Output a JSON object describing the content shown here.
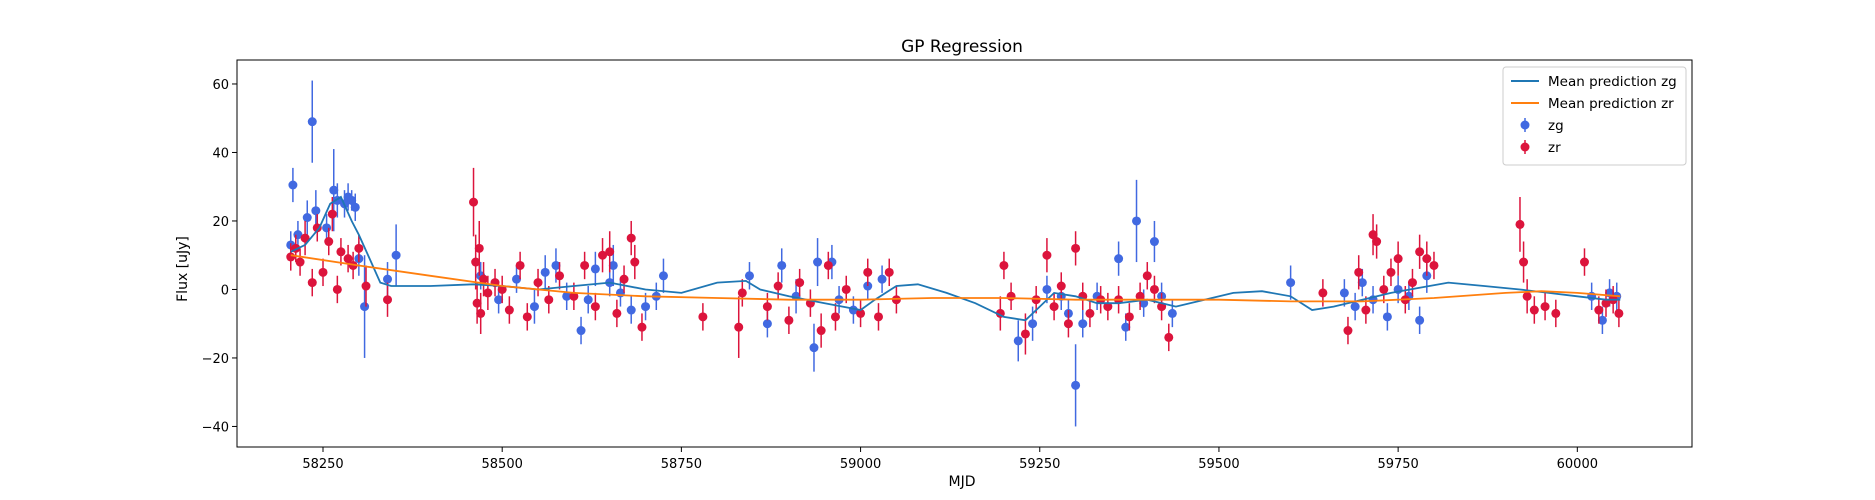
{
  "chart_data": {
    "type": "scatter",
    "title": "GP Regression",
    "xlabel": "MJD",
    "ylabel": "Flux [uJy]",
    "xlim": [
      58130,
      60160
    ],
    "ylim": [
      -46,
      67
    ],
    "x_ticks": [
      58250,
      58500,
      58750,
      59000,
      59250,
      59500,
      59750,
      60000
    ],
    "y_ticks": [
      -40,
      -20,
      0,
      20,
      40,
      60
    ],
    "grid": false,
    "legend_position": "top-right",
    "colors": {
      "zg_mean": "#1f77b4",
      "zr_mean": "#ff7f0e",
      "zg_points": "#4169e1",
      "zr_points": "#dc143c"
    },
    "series": [
      {
        "name": "Mean prediction zg",
        "kind": "line",
        "x": [
          58205,
          58225,
          58245,
          58260,
          58275,
          58290,
          58300,
          58315,
          58330,
          58345,
          58400,
          58460,
          58500,
          58550,
          58600,
          58650,
          58700,
          58750,
          58800,
          58840,
          58860,
          58900,
          58950,
          59000,
          59020,
          59050,
          59080,
          59120,
          59160,
          59200,
          59230,
          59250,
          59270,
          59300,
          59330,
          59360,
          59400,
          59440,
          59480,
          59520,
          59560,
          59600,
          59630,
          59660,
          59700,
          59740,
          59780,
          59820,
          59870,
          59920,
          59960,
          60000,
          60040,
          60060
        ],
        "y": [
          11,
          13,
          18,
          25,
          27,
          20,
          16,
          9,
          2,
          1,
          1,
          1.5,
          1,
          0,
          1,
          2,
          0,
          -1,
          2,
          2.5,
          0,
          -2,
          -4,
          -6,
          -3,
          1,
          1.5,
          -1,
          -4,
          -8,
          -9,
          -5,
          -1,
          -2,
          -4,
          -4,
          -3,
          -5,
          -3,
          -1,
          -0.5,
          -2,
          -6,
          -5,
          -3,
          -1,
          0.5,
          2,
          1,
          0,
          -1,
          -2,
          -3,
          -3
        ]
      },
      {
        "name": "Mean prediction zr",
        "kind": "line",
        "x": [
          58205,
          58300,
          58400,
          58500,
          58600,
          58700,
          58800,
          58900,
          59000,
          59100,
          59200,
          59300,
          59400,
          59500,
          59600,
          59700,
          59800,
          59900,
          59950,
          60000,
          60060
        ],
        "y": [
          10,
          7,
          4,
          1,
          -1,
          -2,
          -2.5,
          -3,
          -3,
          -2.5,
          -2.5,
          -3,
          -3,
          -3,
          -3.5,
          -3.5,
          -2.5,
          -1,
          -0.5,
          -1,
          -2
        ]
      },
      {
        "name": "zg",
        "kind": "errorbar",
        "points": [
          [
            58205,
            13,
            4
          ],
          [
            58208,
            30.5,
            5
          ],
          [
            58215,
            16,
            4
          ],
          [
            58228,
            21,
            5
          ],
          [
            58235,
            49,
            12
          ],
          [
            58240,
            23,
            6
          ],
          [
            58255,
            18,
            4
          ],
          [
            58265,
            29,
            12
          ],
          [
            58270,
            26,
            5
          ],
          [
            58280,
            25,
            4
          ],
          [
            58285,
            27,
            4
          ],
          [
            58290,
            26,
            3
          ],
          [
            58295,
            24,
            4
          ],
          [
            58300,
            9,
            5
          ],
          [
            58308,
            -5,
            15
          ],
          [
            58340,
            3,
            5
          ],
          [
            58352,
            10,
            9
          ],
          [
            58470,
            4,
            4
          ],
          [
            58495,
            -3,
            4
          ],
          [
            58520,
            3,
            4
          ],
          [
            58545,
            -5,
            5
          ],
          [
            58560,
            5,
            5
          ],
          [
            58575,
            7,
            5
          ],
          [
            58590,
            -2,
            4
          ],
          [
            58610,
            -12,
            4
          ],
          [
            58620,
            -3,
            4
          ],
          [
            58630,
            6,
            5
          ],
          [
            58650,
            2,
            4
          ],
          [
            58655,
            7,
            6
          ],
          [
            58665,
            -1,
            4
          ],
          [
            58680,
            -6,
            4
          ],
          [
            58700,
            -5,
            4
          ],
          [
            58715,
            -2,
            4
          ],
          [
            58725,
            4,
            5
          ],
          [
            58845,
            4,
            4
          ],
          [
            58870,
            -10,
            4
          ],
          [
            58890,
            7,
            5
          ],
          [
            58910,
            -2,
            5
          ],
          [
            58935,
            -17,
            7
          ],
          [
            58940,
            8,
            7
          ],
          [
            58960,
            8,
            5
          ],
          [
            58970,
            -3,
            4
          ],
          [
            58990,
            -6,
            4
          ],
          [
            59010,
            1,
            4
          ],
          [
            59030,
            3,
            4
          ],
          [
            59220,
            -15,
            6
          ],
          [
            59240,
            -10,
            5
          ],
          [
            59260,
            0,
            4
          ],
          [
            59280,
            -2,
            4
          ],
          [
            59290,
            -7,
            4
          ],
          [
            59300,
            -28,
            12
          ],
          [
            59310,
            -10,
            4
          ],
          [
            59330,
            -2,
            4
          ],
          [
            59360,
            9,
            5
          ],
          [
            59370,
            -11,
            4
          ],
          [
            59385,
            20,
            12
          ],
          [
            59395,
            -4,
            4
          ],
          [
            59410,
            14,
            6
          ],
          [
            59420,
            -2,
            4
          ],
          [
            59435,
            -7,
            4
          ],
          [
            59600,
            2,
            5
          ],
          [
            59675,
            -1,
            4
          ],
          [
            59690,
            -5,
            4
          ],
          [
            59700,
            2,
            4
          ],
          [
            59715,
            -3,
            4
          ],
          [
            59735,
            -8,
            4
          ],
          [
            59750,
            0,
            4
          ],
          [
            59765,
            -2,
            4
          ],
          [
            59780,
            -9,
            4
          ],
          [
            59790,
            4,
            5
          ],
          [
            60020,
            -2,
            4
          ],
          [
            60035,
            -9,
            4
          ],
          [
            60045,
            -1,
            4
          ],
          [
            60055,
            -2,
            4
          ]
        ]
      },
      {
        "name": "zr",
        "kind": "errorbar",
        "points": [
          [
            58205,
            9.5,
            4
          ],
          [
            58212,
            12,
            4
          ],
          [
            58218,
            8,
            4
          ],
          [
            58225,
            15,
            5
          ],
          [
            58235,
            2,
            4
          ],
          [
            58242,
            18,
            4
          ],
          [
            58250,
            5,
            4
          ],
          [
            58258,
            14,
            4
          ],
          [
            58263,
            22,
            5
          ],
          [
            58270,
            0,
            4
          ],
          [
            58275,
            11,
            4
          ],
          [
            58285,
            9,
            4
          ],
          [
            58292,
            7,
            4
          ],
          [
            58300,
            12,
            4
          ],
          [
            58310,
            1,
            6
          ],
          [
            58340,
            -3,
            5
          ],
          [
            58460,
            25.5,
            10
          ],
          [
            58463,
            8,
            8
          ],
          [
            58465,
            -4,
            6
          ],
          [
            58468,
            12,
            8
          ],
          [
            58470,
            -7,
            6
          ],
          [
            58474,
            3,
            5
          ],
          [
            58480,
            -1,
            5
          ],
          [
            58490,
            2,
            4
          ],
          [
            58500,
            0,
            4
          ],
          [
            58510,
            -6,
            4
          ],
          [
            58525,
            7,
            4
          ],
          [
            58535,
            -8,
            4
          ],
          [
            58550,
            2,
            4
          ],
          [
            58565,
            -3,
            4
          ],
          [
            58580,
            4,
            4
          ],
          [
            58600,
            -2,
            4
          ],
          [
            58615,
            7,
            4
          ],
          [
            58630,
            -5,
            4
          ],
          [
            58640,
            10,
            5
          ],
          [
            58650,
            11,
            6
          ],
          [
            58660,
            -7,
            4
          ],
          [
            58670,
            3,
            4
          ],
          [
            58680,
            15,
            5
          ],
          [
            58685,
            8,
            5
          ],
          [
            58695,
            -11,
            4
          ],
          [
            58780,
            -8,
            4
          ],
          [
            58830,
            -11,
            9
          ],
          [
            58835,
            -1,
            4
          ],
          [
            58870,
            -5,
            4
          ],
          [
            58885,
            1,
            4
          ],
          [
            58900,
            -9,
            4
          ],
          [
            58915,
            2,
            4
          ],
          [
            58930,
            -4,
            4
          ],
          [
            58945,
            -12,
            5
          ],
          [
            58955,
            7,
            4
          ],
          [
            58965,
            -8,
            4
          ],
          [
            58980,
            0,
            4
          ],
          [
            59000,
            -7,
            4
          ],
          [
            59010,
            5,
            4
          ],
          [
            59025,
            -8,
            4
          ],
          [
            59040,
            5,
            4
          ],
          [
            59050,
            -3,
            4
          ],
          [
            59195,
            -7,
            5
          ],
          [
            59200,
            7,
            4
          ],
          [
            59210,
            -2,
            4
          ],
          [
            59230,
            -13,
            6
          ],
          [
            59245,
            -3,
            4
          ],
          [
            59260,
            10,
            5
          ],
          [
            59270,
            -5,
            4
          ],
          [
            59280,
            1,
            4
          ],
          [
            59290,
            -10,
            4
          ],
          [
            59300,
            12,
            5
          ],
          [
            59310,
            -2,
            4
          ],
          [
            59320,
            -7,
            4
          ],
          [
            59335,
            -3,
            4
          ],
          [
            59345,
            -5,
            4
          ],
          [
            59360,
            -3,
            4
          ],
          [
            59375,
            -8,
            4
          ],
          [
            59390,
            -2,
            4
          ],
          [
            59400,
            4,
            4
          ],
          [
            59410,
            0,
            4
          ],
          [
            59420,
            -5,
            4
          ],
          [
            59430,
            -14,
            4
          ],
          [
            59645,
            -1,
            4
          ],
          [
            59680,
            -12,
            4
          ],
          [
            59695,
            5,
            5
          ],
          [
            59705,
            -6,
            4
          ],
          [
            59715,
            16,
            6
          ],
          [
            59720,
            14,
            5
          ],
          [
            59730,
            0,
            4
          ],
          [
            59740,
            5,
            4
          ],
          [
            59750,
            9,
            5
          ],
          [
            59760,
            -3,
            4
          ],
          [
            59770,
            2,
            4
          ],
          [
            59780,
            11,
            5
          ],
          [
            59790,
            9,
            5
          ],
          [
            59800,
            7,
            4
          ],
          [
            59920,
            19,
            8
          ],
          [
            59925,
            8,
            6
          ],
          [
            59930,
            -2,
            5
          ],
          [
            59940,
            -6,
            4
          ],
          [
            59955,
            -5,
            4
          ],
          [
            59970,
            -7,
            4
          ],
          [
            60010,
            8,
            4
          ],
          [
            60030,
            -6,
            4
          ],
          [
            60040,
            -4,
            4
          ],
          [
            60050,
            -3,
            4
          ],
          [
            60058,
            -7,
            4
          ]
        ]
      }
    ]
  }
}
